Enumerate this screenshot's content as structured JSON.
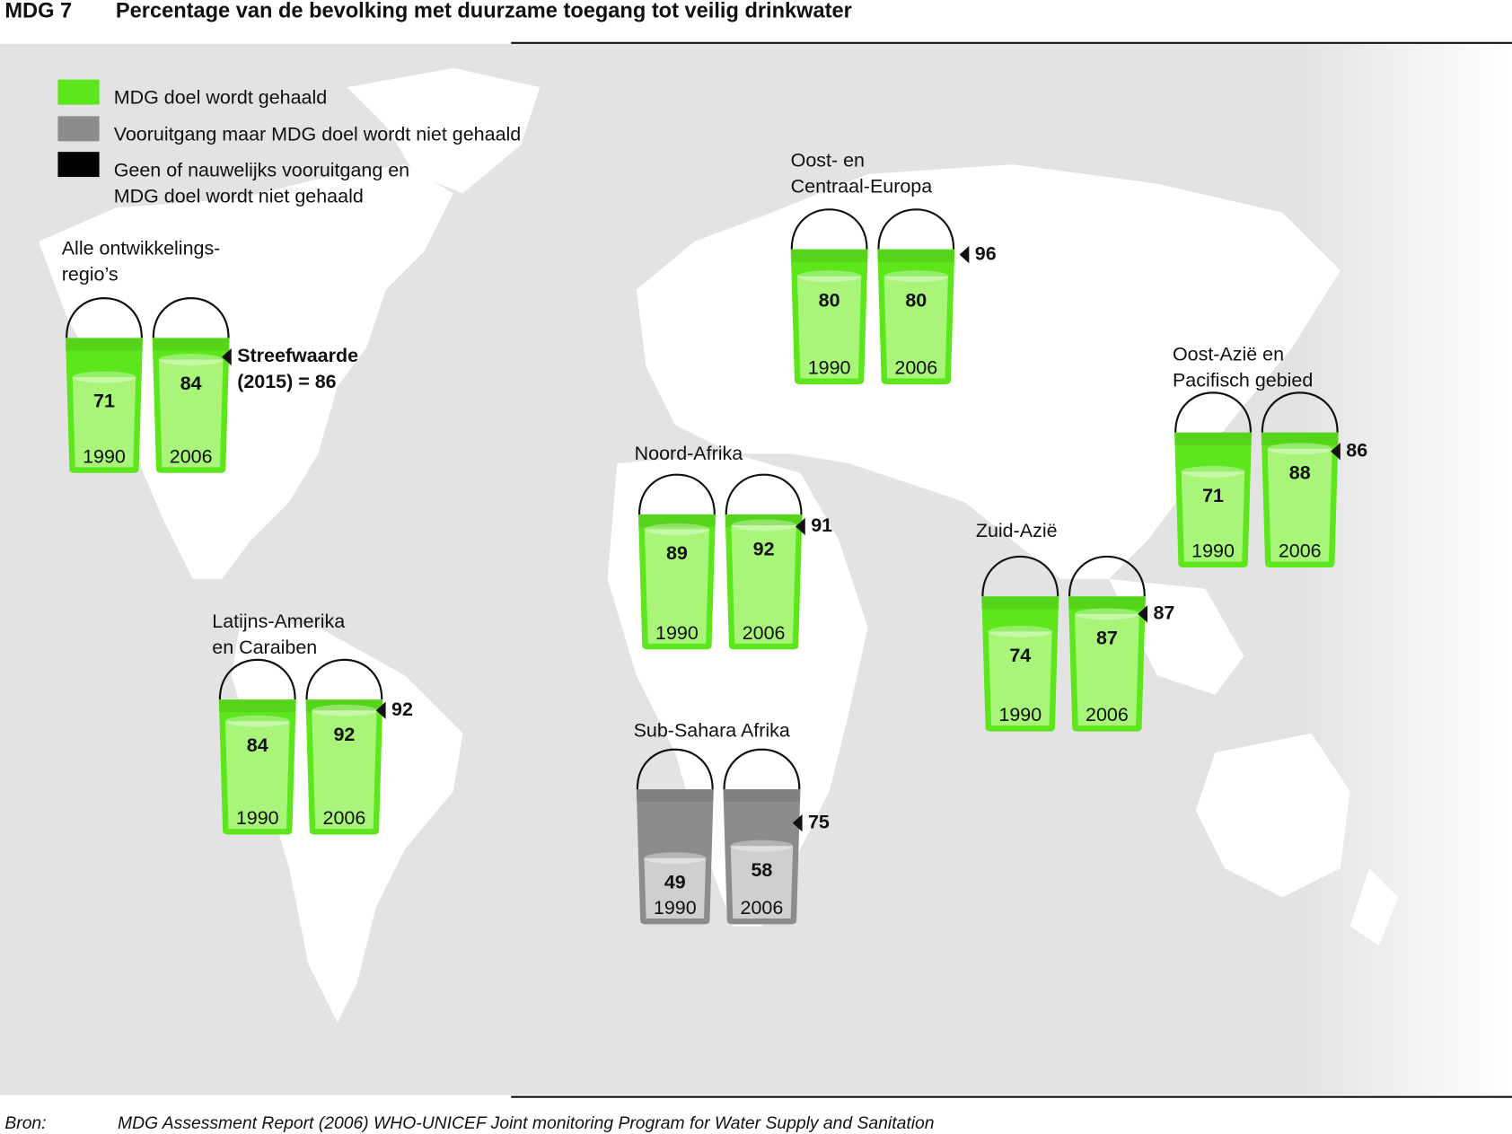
{
  "header": {
    "code": "MDG 7",
    "title": "Percentage van de bevolking met duurzame toegang tot veilig drinkwater"
  },
  "legend": [
    {
      "label": [
        "MDG doel wordt gehaald"
      ],
      "color": "#5ee61c"
    },
    {
      "label": [
        "Vooruitgang maar MDG doel wordt niet gehaald"
      ],
      "color": "#8c8c8c"
    },
    {
      "label": [
        "Geen of nauwelijks vooruitgang en",
        "MDG doel wordt niet gehaald"
      ],
      "color": "#000000"
    }
  ],
  "years": [
    "1990",
    "2006"
  ],
  "regions": [
    {
      "name": [
        "Alle ontwikkelings-",
        "regio’s"
      ],
      "values": [
        71,
        84
      ],
      "target": 86,
      "target_label": [
        "Streefwaarde",
        "(2015) = 86"
      ],
      "color": "#5ee61c",
      "fill_color": "#a8f57a",
      "text_color": "#111111"
    },
    {
      "name": [
        "Oost- en",
        "Centraal-Europa"
      ],
      "values": [
        80,
        80
      ],
      "target": 96,
      "color": "#5ee61c",
      "fill_color": "#a8f57a",
      "text_color": "#111111"
    },
    {
      "name": [
        "Noord-Afrika"
      ],
      "values": [
        89,
        92
      ],
      "target": 91,
      "color": "#5ee61c",
      "fill_color": "#a8f57a",
      "text_color": "#111111"
    },
    {
      "name": [
        "Latijns-Amerika",
        "en Caraiben"
      ],
      "values": [
        84,
        92
      ],
      "target": 92,
      "color": "#5ee61c",
      "fill_color": "#a8f57a",
      "text_color": "#111111"
    },
    {
      "name": [
        "Sub-Sahara Afrika"
      ],
      "values": [
        49,
        58
      ],
      "target": 75,
      "color": "#8c8c8c",
      "fill_color": "#cfcfcf",
      "text_color": "#ffffff"
    },
    {
      "name": [
        "Zuid-Azië"
      ],
      "values": [
        74,
        87
      ],
      "target": 87,
      "color": "#5ee61c",
      "fill_color": "#a8f57a",
      "text_color": "#111111"
    },
    {
      "name": [
        "Oost-Azië en",
        "Pacifisch gebied"
      ],
      "values": [
        71,
        88
      ],
      "target": 86,
      "color": "#5ee61c",
      "fill_color": "#a8f57a",
      "text_color": "#111111"
    }
  ],
  "source": {
    "label": "Bron:",
    "text": "MDG Assessment Report (2006) WHO-UNICEF Joint monitoring Program for Water Supply and Sanitation"
  }
}
